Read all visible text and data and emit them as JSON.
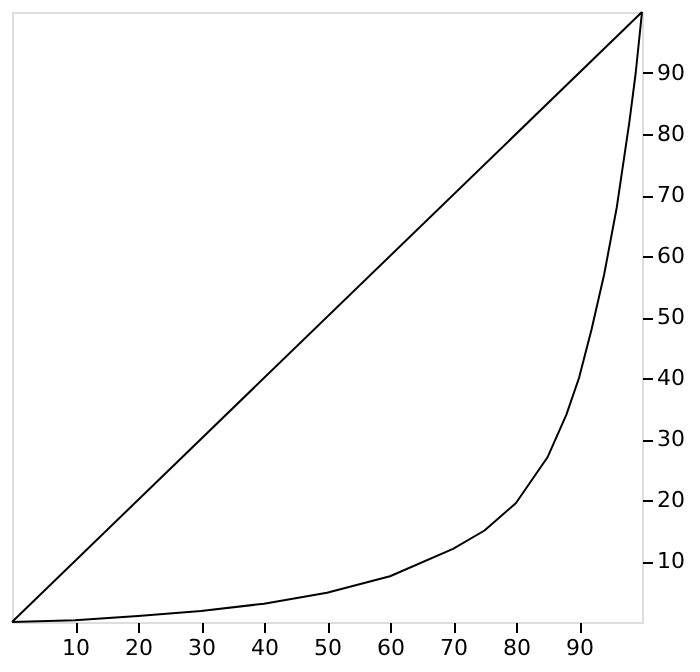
{
  "chart_data": {
    "type": "line",
    "xlim": [
      0,
      100
    ],
    "ylim": [
      0,
      100
    ],
    "xticks": [
      10,
      20,
      30,
      40,
      50,
      60,
      70,
      80,
      90
    ],
    "yticks": [
      10,
      20,
      30,
      40,
      50,
      60,
      70,
      80,
      90
    ],
    "grid": false,
    "marker": "none",
    "line_style": "solid",
    "series": [
      {
        "color": "#000000",
        "x": [
          0,
          100
        ],
        "values": [
          0,
          100
        ]
      },
      {
        "color": "#000000",
        "x": [
          0,
          10,
          20,
          30,
          40,
          50,
          60,
          70,
          75,
          80,
          85,
          88,
          90,
          92,
          94,
          96,
          98,
          99,
          100
        ],
        "values": [
          0,
          0.3,
          1,
          1.8,
          3,
          4.8,
          7.5,
          12,
          15,
          19.5,
          27,
          34,
          40,
          48,
          57,
          68,
          82,
          90,
          100
        ]
      }
    ]
  }
}
